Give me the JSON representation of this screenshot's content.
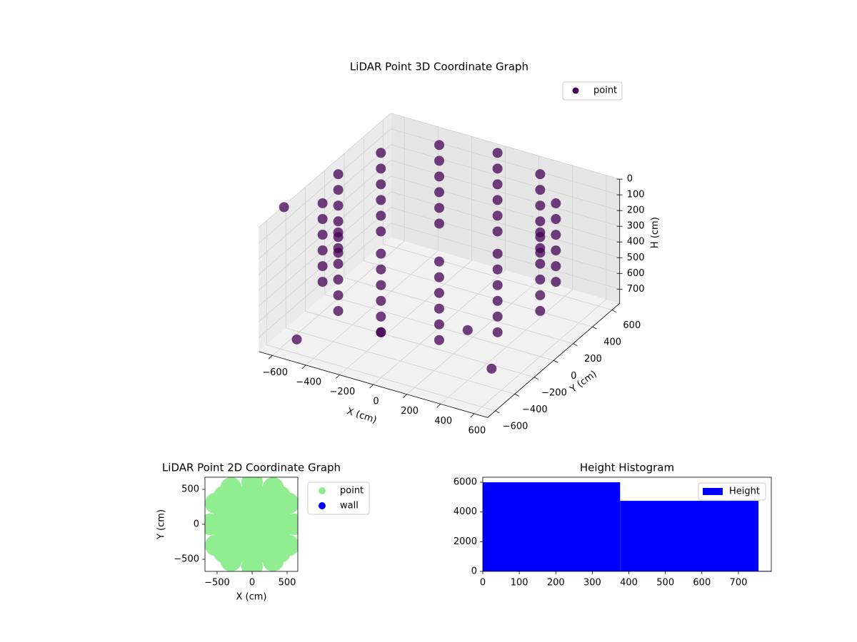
{
  "chart_data": [
    {
      "type": "scatter3d",
      "title": "LiDAR Point 3D Coordinate Graph",
      "xlabel": "X (cm)",
      "ylabel": "Y (cm)",
      "zlabel": "H (cm)",
      "xlim": [
        -680,
        680
      ],
      "ylim": [
        -680,
        680
      ],
      "zlim": [
        0,
        790
      ],
      "z_inverted": true,
      "xticks": [
        {
          "value": -600,
          "label": "−600"
        },
        {
          "value": -400,
          "label": "−400"
        },
        {
          "value": -200,
          "label": "−200"
        },
        0,
        200,
        400,
        600
      ],
      "yticks": [
        {
          "value": -600,
          "label": "−600"
        },
        {
          "value": -400,
          "label": "−400"
        },
        {
          "value": -200,
          "label": "−200"
        },
        0,
        200,
        400,
        600
      ],
      "zticks": [
        0,
        100,
        200,
        300,
        400,
        500,
        600,
        700
      ],
      "grid": true,
      "legend": "upper right",
      "series": [
        {
          "name": "point",
          "color": "#440154",
          "x": [
            600,
            520,
            300,
            0,
            -300,
            -520,
            -600,
            -520,
            -300,
            0,
            300,
            520,
            600,
            520,
            300,
            0,
            -300,
            -520,
            -600,
            -520,
            -300,
            0,
            300,
            520,
            600,
            520,
            300,
            0,
            -300,
            -520,
            -600,
            -520,
            -300,
            0,
            300,
            520,
            600,
            520,
            300,
            0,
            -300,
            -520,
            -600,
            -520,
            -300,
            0,
            300,
            520,
            600,
            520,
            300,
            0,
            -300,
            -520,
            -600,
            -520,
            -300,
            0,
            300,
            520,
            600,
            520,
            300,
            0,
            -300,
            -520,
            -600,
            -520,
            -300,
            0,
            300,
            520,
            -680,
            -500,
            0,
            400,
            600
          ],
          "y": [
            0,
            300,
            520,
            600,
            520,
            300,
            0,
            -300,
            -520,
            -600,
            -520,
            -300,
            0,
            300,
            520,
            600,
            520,
            300,
            0,
            -300,
            -520,
            -600,
            -520,
            -300,
            0,
            300,
            520,
            600,
            520,
            300,
            0,
            -300,
            -520,
            -600,
            -520,
            -300,
            0,
            300,
            520,
            600,
            520,
            300,
            0,
            -300,
            -520,
            -600,
            -520,
            -300,
            0,
            300,
            520,
            600,
            520,
            300,
            0,
            -300,
            -520,
            -600,
            -520,
            -300,
            0,
            300,
            520,
            600,
            520,
            300,
            0,
            -300,
            -520,
            -600,
            -520,
            -300,
            -420,
            -600,
            -600,
            -400,
            -500
          ],
          "z": [
            0,
            0,
            0,
            0,
            0,
            0,
            0,
            0,
            0,
            0,
            0,
            0,
            100,
            100,
            100,
            100,
            100,
            100,
            100,
            100,
            100,
            100,
            100,
            100,
            200,
            200,
            200,
            200,
            200,
            200,
            200,
            200,
            200,
            200,
            200,
            200,
            300,
            300,
            300,
            300,
            300,
            300,
            300,
            300,
            300,
            300,
            300,
            300,
            400,
            400,
            400,
            400,
            400,
            400,
            400,
            400,
            400,
            400,
            400,
            400,
            500,
            500,
            500,
            500,
            500,
            500,
            500,
            500,
            500,
            500,
            500,
            500,
            10,
            700,
            500,
            470,
            600
          ]
        }
      ]
    },
    {
      "type": "scatter",
      "title": "LiDAR Point 2D Coordinate Graph",
      "xlabel": "X (cm)",
      "ylabel": "Y (cm)",
      "xlim": [
        -673,
        653
      ],
      "ylim": [
        -673,
        673
      ],
      "xticks": [
        {
          "value": -500,
          "label": "−500"
        },
        0,
        500
      ],
      "yticks": [
        {
          "value": -500,
          "label": "−500"
        },
        0,
        500
      ],
      "legend": "outside right",
      "series": [
        {
          "name": "point",
          "color": "#90ee90",
          "x": [
            -600,
            -400,
            -400,
            -400,
            -400,
            -400,
            -200,
            -200,
            -200,
            -200,
            -200,
            0,
            0,
            0,
            0,
            0,
            0,
            0,
            200,
            200,
            200,
            200,
            200,
            400,
            400,
            400,
            400,
            400,
            600,
            520,
            300,
            -300,
            -520,
            -520,
            -300,
            300,
            520
          ],
          "y": [
            0,
            -400,
            -200,
            0,
            200,
            400,
            -400,
            -200,
            0,
            200,
            400,
            -600,
            -400,
            -200,
            0,
            200,
            400,
            600,
            -400,
            -200,
            0,
            200,
            400,
            -400,
            -200,
            0,
            200,
            400,
            0,
            300,
            520,
            520,
            300,
            -300,
            -520,
            -520,
            -300
          ]
        },
        {
          "name": "wall",
          "color": "#0000ff",
          "x": [],
          "y": []
        }
      ]
    },
    {
      "type": "histogram",
      "title": "Height Histogram",
      "bins": [
        0,
        376,
        755,
        790
      ],
      "series": [
        {
          "name": "Height",
          "color": "#0000ff",
          "counts": [
            6000,
            4750,
            30
          ]
        }
      ],
      "legend": "upper right",
      "xlim": [
        0,
        790
      ],
      "ylim": [
        0,
        6340
      ],
      "xticks": [
        0,
        100,
        200,
        300,
        400,
        500,
        600,
        700
      ],
      "yticks": [
        0,
        2000,
        4000,
        6000
      ]
    }
  ]
}
